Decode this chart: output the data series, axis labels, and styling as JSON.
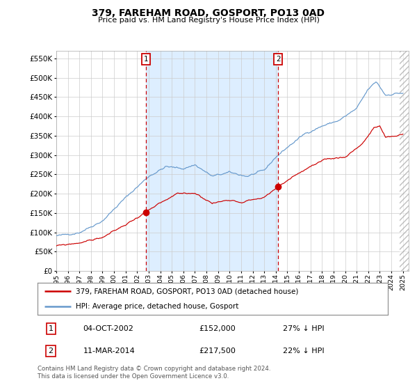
{
  "title": "379, FAREHAM ROAD, GOSPORT, PO13 0AD",
  "subtitle": "Price paid vs. HM Land Registry's House Price Index (HPI)",
  "ylabel_ticks": [
    "£0",
    "£50K",
    "£100K",
    "£150K",
    "£200K",
    "£250K",
    "£300K",
    "£350K",
    "£400K",
    "£450K",
    "£500K",
    "£550K"
  ],
  "ylabel_values": [
    0,
    50000,
    100000,
    150000,
    200000,
    250000,
    300000,
    350000,
    400000,
    450000,
    500000,
    550000
  ],
  "ylim": [
    0,
    570000
  ],
  "xlim_start": 1995.0,
  "xlim_end": 2025.5,
  "hpi_color": "#6699cc",
  "hpi_fill_color": "#ddeeff",
  "price_color": "#cc0000",
  "marker1_x": 2002.75,
  "marker1_y": 152000,
  "marker1_label": "1",
  "marker1_date": "04-OCT-2002",
  "marker1_price": "£152,000",
  "marker1_hpi": "27% ↓ HPI",
  "marker2_x": 2014.2,
  "marker2_y": 217500,
  "marker2_label": "2",
  "marker2_date": "11-MAR-2014",
  "marker2_price": "£217,500",
  "marker2_hpi": "22% ↓ HPI",
  "legend_line1": "379, FAREHAM ROAD, GOSPORT, PO13 0AD (detached house)",
  "legend_line2": "HPI: Average price, detached house, Gosport",
  "footnote": "Contains HM Land Registry data © Crown copyright and database right 2024.\nThis data is licensed under the Open Government Licence v3.0.",
  "background_color": "#ffffff",
  "grid_color": "#cccccc"
}
